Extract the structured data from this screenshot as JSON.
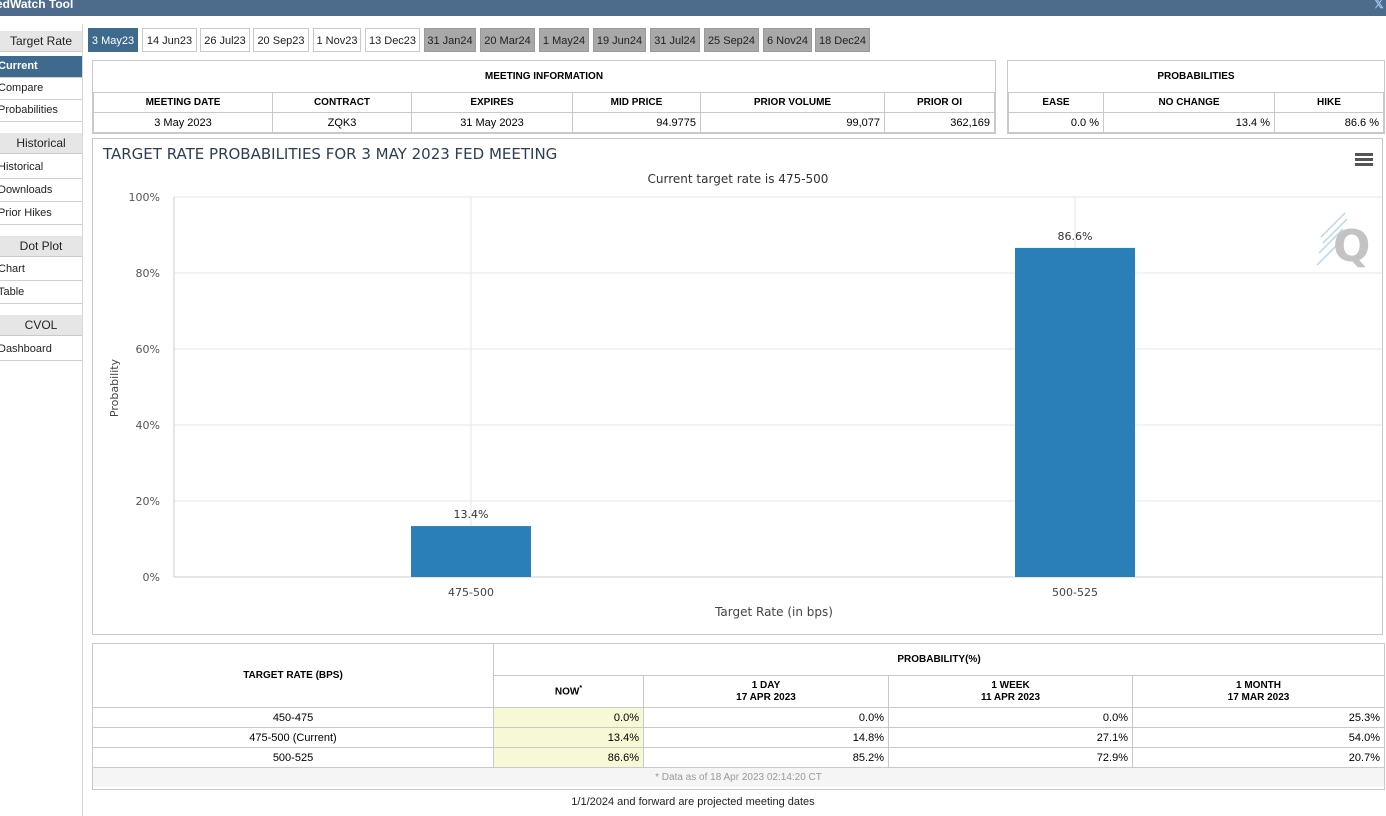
{
  "app": {
    "title": "edWatch Tool"
  },
  "sidebar": {
    "sections": [
      {
        "header": "Target Rate",
        "items": [
          "Current",
          "Compare",
          "Probabilities"
        ]
      },
      {
        "header": "Historical",
        "items": [
          "Historical",
          "Downloads",
          "Prior Hikes"
        ]
      },
      {
        "header": "Dot Plot",
        "items": [
          "Chart",
          "Table"
        ]
      },
      {
        "header": "CVOL",
        "items": [
          "Dashboard"
        ]
      }
    ],
    "active": "Current"
  },
  "tabs": [
    "3 May23",
    "14 Jun23",
    "26 Jul23",
    "20 Sep23",
    "1 Nov23",
    "13 Dec23",
    "31 Jan24",
    "20 Mar24",
    "1 May24",
    "19 Jun24",
    "31 Jul24",
    "25 Sep24",
    "6 Nov24",
    "18 Dec24"
  ],
  "meeting_info": {
    "title": "MEETING INFORMATION",
    "headers": [
      "MEETING DATE",
      "CONTRACT",
      "EXPIRES",
      "MID PRICE",
      "PRIOR VOLUME",
      "PRIOR OI"
    ],
    "values": [
      "3 May 2023",
      "ZQK3",
      "31 May 2023",
      "94.9775",
      "99,077",
      "362,169"
    ]
  },
  "probabilities": {
    "title": "PROBABILITIES",
    "headers": [
      "EASE",
      "NO CHANGE",
      "HIKE"
    ],
    "values": [
      "0.0 %",
      "13.4 %",
      "86.6 %"
    ]
  },
  "chart_data": {
    "type": "bar",
    "title": "TARGET RATE PROBABILITIES FOR 3 MAY 2023 FED MEETING",
    "subtitle": "Current target rate is 475-500",
    "xlabel": "Target Rate (in bps)",
    "ylabel": "Probability",
    "categories": [
      "475-500",
      "500-525"
    ],
    "values": [
      13.4,
      86.6
    ],
    "data_labels": [
      "13.4%",
      "86.6%"
    ],
    "ylim": [
      0,
      100
    ],
    "yticks": [
      "0%",
      "20%",
      "40%",
      "60%",
      "80%",
      "100%"
    ],
    "bar_color": "#2a7fb8",
    "grid": true
  },
  "prob_table": {
    "col_header": "TARGET RATE (BPS)",
    "group_header": "PROBABILITY(%)",
    "columns": [
      {
        "label": "NOW",
        "sup": "*",
        "date": ""
      },
      {
        "label": "1 DAY",
        "date": "17 APR 2023"
      },
      {
        "label": "1 WEEK",
        "date": "11 APR 2023"
      },
      {
        "label": "1 MONTH",
        "date": "17 MAR 2023"
      }
    ],
    "rows": [
      {
        "rate": "450-475",
        "values": [
          "0.0%",
          "0.0%",
          "0.0%",
          "25.3%"
        ]
      },
      {
        "rate": "475-500 (Current)",
        "values": [
          "13.4%",
          "14.8%",
          "27.1%",
          "54.0%"
        ]
      },
      {
        "rate": "500-525",
        "values": [
          "86.6%",
          "85.2%",
          "72.9%",
          "20.7%"
        ]
      }
    ],
    "data_note": "* Data as of 18 Apr 2023 02:14:20 CT"
  },
  "footer": {
    "note": "1/1/2024 and forward are projected meeting dates"
  }
}
